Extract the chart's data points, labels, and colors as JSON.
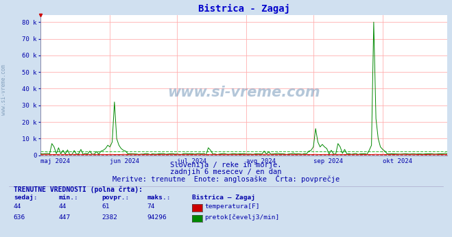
{
  "title": "Bistrica - Zagaj",
  "title_color": "#0000cc",
  "title_fontsize": 10,
  "bg_color": "#d0e0f0",
  "plot_bg_color": "#ffffff",
  "grid_color": "#ffb0b0",
  "x_labels": [
    "maj 2024",
    "jun 2024",
    "jul 2024",
    "avg 2024",
    "sep 2024",
    "okt 2024"
  ],
  "x_label_color": "#0000aa",
  "y_tick_color": "#0000aa",
  "yticks": [
    0,
    10000,
    20000,
    30000,
    40000,
    50000,
    60000,
    70000,
    80000
  ],
  "ytick_labels": [
    "0",
    "10 k",
    "20 k",
    "30 k",
    "40 k",
    "50 k",
    "60 k",
    "70 k",
    "80 k"
  ],
  "line_color_flow": "#008800",
  "line_color_temp": "#cc0000",
  "dashed_color_flow": "#00aa00",
  "dashed_color_temp": "#cc0000",
  "footer_lines": [
    "Slovenija / reke in morje.",
    "zadnjih 6 mesecev / en dan",
    "Meritve: trenutne  Enote: anglosaške  Črta: povprečje"
  ],
  "footer_color": "#0000aa",
  "footer_fontsize": 7.5,
  "table_title": "TRENUTNE VREDNOSTI (polna črta):",
  "table_color": "#0000aa",
  "table_headers": [
    "sedaj:",
    "min.:",
    "povpr.:",
    "maks.:",
    "Bistrica – Zagaj"
  ],
  "table_row1": [
    "44",
    "44",
    "61",
    "74",
    "temperatura[F]"
  ],
  "table_row1_color": "#cc0000",
  "table_row2": [
    "636",
    "447",
    "2382",
    "94296",
    "pretok[čevelj3/min]"
  ],
  "table_row2_color": "#008800",
  "n_points": 183,
  "xlim": [
    0,
    182
  ],
  "ylim": [
    0,
    84000
  ],
  "x_month_positions": [
    0,
    31,
    61,
    92,
    122,
    153,
    183
  ],
  "side_watermark": "www.si-vreme.com",
  "center_watermark": "www.si-vreme.com"
}
